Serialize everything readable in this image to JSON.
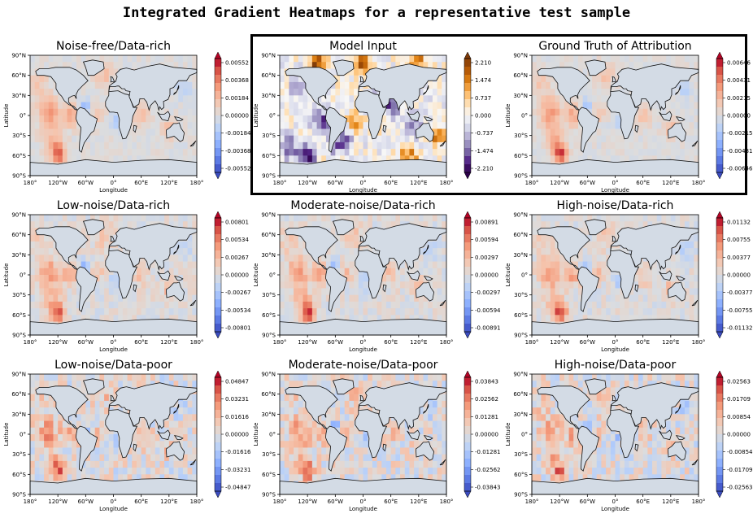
{
  "title": "Integrated Gradient Heatmaps for a representative test sample",
  "axis": {
    "xlabel": "Longitude",
    "ylabel": "Latitude",
    "xticks": [
      "180°",
      "120°W",
      "60°W",
      "0°",
      "60°E",
      "120°E",
      "180°"
    ],
    "yticks": [
      "90°N",
      "60°N",
      "30°N",
      "0°",
      "30°S",
      "60°S",
      "90°S"
    ]
  },
  "colors": {
    "land": "#d3dbe5",
    "coast": "#111111",
    "diverging_positive": "#b2182b",
    "diverging_negative": "#2166ac",
    "input_positive": "#b35806",
    "input_negative": "#2d004b"
  },
  "chart_data": [
    {
      "type": "heatmap",
      "title": "Noise-free/Data-rich",
      "colormap": "coolwarm",
      "colorbar_ticks": [
        "0.00552",
        "0.00368",
        "0.00184",
        "0.00000",
        "-0.00184",
        "-0.00368",
        "-0.00552"
      ],
      "colorbar_range": [
        -0.00552,
        0.00552
      ],
      "xlim": [
        -180,
        180
      ],
      "ylim": [
        -90,
        90
      ],
      "highlighted": false
    },
    {
      "type": "heatmap",
      "title": "Model Input",
      "colormap": "PuOr",
      "colorbar_ticks": [
        "2.210",
        "1.474",
        "0.737",
        "0.000",
        "-0.737",
        "-1.474",
        "-2.210"
      ],
      "colorbar_range": [
        -2.21,
        2.21
      ],
      "xlim": [
        -180,
        180
      ],
      "ylim": [
        -90,
        90
      ],
      "highlighted": true
    },
    {
      "type": "heatmap",
      "title": "Ground Truth of Attribution",
      "colormap": "coolwarm",
      "colorbar_ticks": [
        "0.00646",
        "0.00431",
        "0.00215",
        "0.00000",
        "-0.00215",
        "-0.00431",
        "-0.00646"
      ],
      "colorbar_range": [
        -0.00646,
        0.00646
      ],
      "xlim": [
        -180,
        180
      ],
      "ylim": [
        -90,
        90
      ],
      "highlighted": true
    },
    {
      "type": "heatmap",
      "title": "Low-noise/Data-rich",
      "colormap": "coolwarm",
      "colorbar_ticks": [
        "0.00801",
        "0.00534",
        "0.00267",
        "0.00000",
        "-0.00267",
        "-0.00534",
        "-0.00801"
      ],
      "colorbar_range": [
        -0.00801,
        0.00801
      ],
      "xlim": [
        -180,
        180
      ],
      "ylim": [
        -90,
        90
      ],
      "highlighted": false
    },
    {
      "type": "heatmap",
      "title": "Moderate-noise/Data-rich",
      "colormap": "coolwarm",
      "colorbar_ticks": [
        "0.00891",
        "0.00594",
        "0.00297",
        "0.00000",
        "-0.00297",
        "-0.00594",
        "-0.00891"
      ],
      "colorbar_range": [
        -0.00891,
        0.00891
      ],
      "xlim": [
        -180,
        180
      ],
      "ylim": [
        -90,
        90
      ],
      "highlighted": false
    },
    {
      "type": "heatmap",
      "title": "High-noise/Data-rich",
      "colormap": "coolwarm",
      "colorbar_ticks": [
        "0.01132",
        "0.00755",
        "0.00377",
        "0.00000",
        "-0.00377",
        "-0.00755",
        "-0.01132"
      ],
      "colorbar_range": [
        -0.01132,
        0.01132
      ],
      "xlim": [
        -180,
        180
      ],
      "ylim": [
        -90,
        90
      ],
      "highlighted": false
    },
    {
      "type": "heatmap",
      "title": "Low-noise/Data-poor",
      "colormap": "coolwarm",
      "colorbar_ticks": [
        "0.04847",
        "0.03231",
        "0.01616",
        "0.00000",
        "-0.01616",
        "-0.03231",
        "-0.04847"
      ],
      "colorbar_range": [
        -0.04847,
        0.04847
      ],
      "xlim": [
        -180,
        180
      ],
      "ylim": [
        -90,
        90
      ],
      "highlighted": false
    },
    {
      "type": "heatmap",
      "title": "Moderate-noise/Data-poor",
      "colormap": "coolwarm",
      "colorbar_ticks": [
        "0.03843",
        "0.02562",
        "0.01281",
        "0.00000",
        "-0.01281",
        "-0.02562",
        "-0.03843"
      ],
      "colorbar_range": [
        -0.03843,
        0.03843
      ],
      "xlim": [
        -180,
        180
      ],
      "ylim": [
        -90,
        90
      ],
      "highlighted": false
    },
    {
      "type": "heatmap",
      "title": "High-noise/Data-poor",
      "colormap": "coolwarm",
      "colorbar_ticks": [
        "0.02563",
        "0.01709",
        "0.00854",
        "0.00000",
        "-0.00854",
        "-0.01709",
        "-0.02563"
      ],
      "colorbar_range": [
        -0.02563,
        0.02563
      ],
      "xlim": [
        -180,
        180
      ],
      "ylim": [
        -90,
        90
      ],
      "highlighted": false
    }
  ]
}
